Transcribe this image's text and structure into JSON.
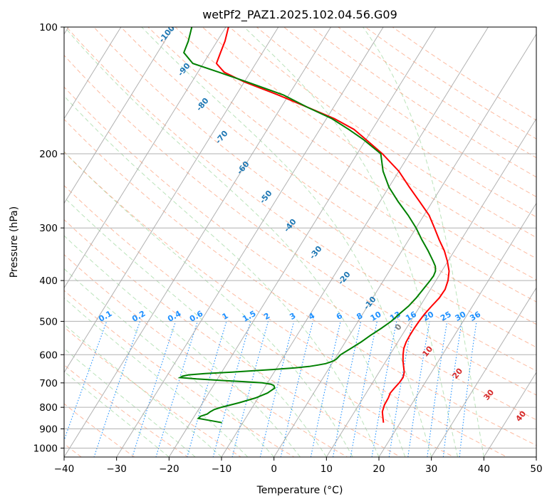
{
  "chart_data": {
    "type": "line",
    "title": "wetPf2_PAZ1.2025.102.04.56.G09",
    "xlabel": "Temperature (°C)",
    "ylabel": "Pressure (hPa)",
    "xlim": [
      -40,
      50
    ],
    "ylim": [
      1050,
      100
    ],
    "y_scale": "log",
    "x_ticks": [
      "−40",
      "−30",
      "−20",
      "−10",
      "0",
      "10",
      "20",
      "30",
      "40",
      "50"
    ],
    "x_tick_values": [
      -40,
      -30,
      -20,
      -10,
      0,
      10,
      20,
      30,
      40,
      50
    ],
    "y_ticks": [
      "100",
      "200",
      "300",
      "400",
      "500",
      "600",
      "700",
      "800",
      "900",
      "1000"
    ],
    "y_tick_values": [
      100,
      200,
      300,
      400,
      500,
      600,
      700,
      800,
      900,
      1000
    ],
    "grid": true,
    "colors": {
      "temperature": "#ff0000",
      "dewpoint": "#008000",
      "isotherm": "#a9a9a9",
      "dry_adiabat": "#fc8d62",
      "moist_adiabat": "#66c266",
      "mixing_ratio": "#1e90ff",
      "isotherm_label": "#1f78b4",
      "dry_adiabat_label": "#d62728",
      "rh_curve": "#d2b48c"
    },
    "series": [
      {
        "name": "",
        "role": "temperature",
        "pressure": [
          870,
          850,
          820,
          790,
          760,
          740,
          720,
          700,
          680,
          660,
          640,
          620,
          600,
          580,
          560,
          540,
          520,
          500,
          480,
          460,
          440,
          420,
          400,
          380,
          360,
          340,
          320,
          300,
          280,
          260,
          240,
          220,
          200,
          185,
          175,
          165,
          155,
          145,
          135,
          128,
          122,
          115,
          108,
          100
        ],
        "temperature": [
          16.8,
          16.2,
          15.3,
          14.9,
          14.8,
          14.6,
          14.8,
          15.1,
          15.2,
          14.8,
          14.0,
          13.2,
          12.5,
          11.9,
          11.6,
          11.5,
          11.5,
          11.6,
          11.8,
          12.2,
          12.7,
          12.8,
          12.3,
          11.4,
          9.9,
          8.1,
          5.8,
          3.5,
          1.0,
          -2.4,
          -6.1,
          -10.0,
          -15.2,
          -20.0,
          -23.5,
          -28.5,
          -35.0,
          -42.0,
          -50.0,
          -55.0,
          -57.5,
          -58.0,
          -58.5,
          -59.5
        ]
      },
      {
        "name": "",
        "role": "dewpoint",
        "pressure": [
          870,
          860,
          850,
          840,
          830,
          820,
          810,
          800,
          780,
          760,
          740,
          720,
          710,
          705,
          700,
          695,
          690,
          685,
          680,
          675,
          670,
          665,
          660,
          655,
          650,
          645,
          640,
          635,
          630,
          625,
          620,
          615,
          610,
          600,
          580,
          560,
          540,
          520,
          500,
          480,
          460,
          440,
          420,
          400,
          390,
          380,
          370,
          360,
          340,
          320,
          300,
          280,
          260,
          240,
          220,
          200,
          185,
          175,
          165,
          155,
          145,
          135,
          128,
          122,
          115,
          108,
          100
        ],
        "temperature": [
          -14.0,
          -16.5,
          -19.0,
          -18.8,
          -17.8,
          -17.5,
          -17.0,
          -15.9,
          -13.0,
          -10.5,
          -8.8,
          -8.0,
          -8.5,
          -9.2,
          -11.0,
          -15.0,
          -19.5,
          -24.0,
          -27.3,
          -27.0,
          -26.0,
          -23.0,
          -18.0,
          -14.0,
          -10.0,
          -6.5,
          -4.0,
          -2.5,
          -1.2,
          -0.5,
          0.0,
          0.3,
          0.4,
          0.6,
          1.8,
          3.0,
          4.0,
          5.2,
          6.3,
          7.0,
          7.8,
          8.3,
          8.6,
          8.9,
          9.0,
          8.8,
          8.2,
          7.2,
          5.0,
          2.5,
          0.0,
          -3.0,
          -6.5,
          -10.0,
          -13.0,
          -15.5,
          -20.5,
          -24.5,
          -29.0,
          -35.0,
          -41.0,
          -49.5,
          -56.0,
          -62.0,
          -65.0,
          -65.5,
          -66.5
        ]
      }
    ],
    "isotherm_labels": [
      "-100",
      "-90",
      "-80",
      "-70",
      "-60",
      "-50",
      "-40",
      "-30",
      "-20",
      "-10",
      "0",
      "10",
      "20",
      "30",
      "40"
    ],
    "isotherm_label_values": [
      -100,
      -90,
      -80,
      -70,
      -60,
      -50,
      -40,
      -30,
      -20,
      -10,
      0,
      10,
      20,
      30,
      40
    ],
    "mixing_ratio_labels": [
      "0.1",
      "0.2",
      "0.4",
      "0.6",
      "1",
      "1.5",
      "2",
      "3",
      "4",
      "6",
      "8",
      "10",
      "13",
      "16",
      "20",
      "25",
      "30",
      "36"
    ],
    "mixing_ratio_values": [
      0.1,
      0.2,
      0.4,
      0.6,
      1,
      1.5,
      2,
      3,
      4,
      6,
      8,
      10,
      13,
      16,
      20,
      25,
      30,
      36
    ]
  }
}
